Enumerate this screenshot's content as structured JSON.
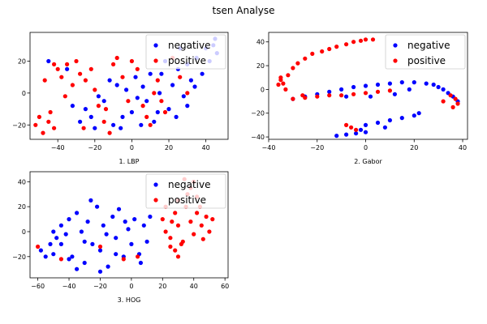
{
  "figure": {
    "suptitle": "tsen Analyse"
  },
  "colors": {
    "negative": "#0000ff",
    "positive": "#ff0000"
  },
  "chart_data": [
    {
      "type": "scatter",
      "xlabel": "1. LBP",
      "xlim": [
        -55,
        52
      ],
      "ylim": [
        -29,
        38
      ],
      "xticks": [
        -40,
        -20,
        0,
        20,
        40
      ],
      "yticks": [
        -20,
        0,
        20
      ],
      "legend": {
        "placement": "top-right",
        "entries": [
          "negative",
          "positive"
        ]
      },
      "series": [
        {
          "name": "negative",
          "color": "#0000ff",
          "points": [
            [
              -28,
              -18
            ],
            [
              -25,
              -10
            ],
            [
              -20,
              -22
            ],
            [
              -15,
              -5
            ],
            [
              -10,
              -20
            ],
            [
              -8,
              5
            ],
            [
              -5,
              -15
            ],
            [
              0,
              -12
            ],
            [
              2,
              10
            ],
            [
              5,
              -20
            ],
            [
              8,
              -5
            ],
            [
              10,
              12
            ],
            [
              12,
              -18
            ],
            [
              15,
              0
            ],
            [
              18,
              20
            ],
            [
              20,
              -10
            ],
            [
              22,
              5
            ],
            [
              25,
              15
            ],
            [
              28,
              -2
            ],
            [
              30,
              18
            ],
            [
              32,
              8
            ],
            [
              35,
              22
            ],
            [
              38,
              12
            ],
            [
              40,
              28
            ],
            [
              42,
              20
            ],
            [
              44,
              30
            ],
            [
              45,
              34
            ],
            [
              46,
              25
            ],
            [
              -18,
              -2
            ],
            [
              -12,
              8
            ],
            [
              -3,
              2
            ],
            [
              6,
              4
            ],
            [
              14,
              -12
            ],
            [
              24,
              -15
            ],
            [
              30,
              -8
            ],
            [
              34,
              4
            ],
            [
              -22,
              -15
            ],
            [
              -6,
              -22
            ],
            [
              3,
              -3
            ],
            [
              16,
              12
            ],
            [
              26,
              28
            ],
            [
              -32,
              -8
            ],
            [
              -45,
              20
            ],
            [
              -35,
              15
            ]
          ]
        },
        {
          "name": "positive",
          "color": "#ff0000",
          "points": [
            [
              -52,
              -20
            ],
            [
              -48,
              -25
            ],
            [
              -45,
              -18
            ],
            [
              -42,
              -22
            ],
            [
              -50,
              -15
            ],
            [
              -44,
              -12
            ],
            [
              -40,
              15
            ],
            [
              -38,
              10
            ],
            [
              -35,
              18
            ],
            [
              -32,
              5
            ],
            [
              -30,
              20
            ],
            [
              -28,
              12
            ],
            [
              -25,
              8
            ],
            [
              -22,
              15
            ],
            [
              -20,
              2
            ],
            [
              -18,
              -8
            ],
            [
              -15,
              -18
            ],
            [
              -12,
              -25
            ],
            [
              -10,
              18
            ],
            [
              -8,
              22
            ],
            [
              -5,
              10
            ],
            [
              -2,
              -5
            ],
            [
              0,
              20
            ],
            [
              3,
              15
            ],
            [
              6,
              -8
            ],
            [
              10,
              -20
            ],
            [
              12,
              0
            ],
            [
              14,
              8
            ],
            [
              18,
              -12
            ],
            [
              22,
              22
            ],
            [
              26,
              10
            ],
            [
              30,
              0
            ],
            [
              8,
              -15
            ],
            [
              -26,
              -22
            ],
            [
              -36,
              -2
            ],
            [
              -42,
              18
            ],
            [
              -47,
              8
            ],
            [
              -14,
              -10
            ],
            [
              16,
              -5
            ]
          ]
        }
      ]
    },
    {
      "type": "scatter",
      "xlabel": "2. Gabor",
      "xlim": [
        -40,
        42
      ],
      "ylim": [
        -42,
        48
      ],
      "xticks": [
        -40,
        -20,
        0,
        20,
        40
      ],
      "yticks": [
        -40,
        -20,
        0,
        20,
        40
      ],
      "legend": {
        "placement": "top-right",
        "entries": [
          "negative",
          "positive"
        ]
      },
      "series": [
        {
          "name": "negative",
          "color": "#0000ff",
          "points": [
            [
              -10,
              0
            ],
            [
              -5,
              2
            ],
            [
              0,
              3
            ],
            [
              5,
              4
            ],
            [
              10,
              5
            ],
            [
              15,
              6
            ],
            [
              20,
              6
            ],
            [
              25,
              5
            ],
            [
              28,
              4
            ],
            [
              30,
              2
            ],
            [
              32,
              0
            ],
            [
              34,
              -3
            ],
            [
              36,
              -6
            ],
            [
              38,
              -10
            ],
            [
              -15,
              -2
            ],
            [
              -20,
              -4
            ],
            [
              -25,
              -6
            ],
            [
              -30,
              -8
            ],
            [
              0,
              -30
            ],
            [
              5,
              -28
            ],
            [
              10,
              -26
            ],
            [
              15,
              -24
            ],
            [
              20,
              -22
            ],
            [
              22,
              -20
            ],
            [
              -8,
              -38
            ],
            [
              -4,
              -37
            ],
            [
              0,
              -36
            ],
            [
              -12,
              -39
            ],
            [
              -2,
              -34
            ],
            [
              8,
              -32
            ],
            [
              2,
              -6
            ],
            [
              12,
              -4
            ],
            [
              18,
              0
            ],
            [
              -8,
              -6
            ]
          ]
        },
        {
          "name": "positive",
          "color": "#ff0000",
          "points": [
            [
              -35,
              8
            ],
            [
              -34,
              5
            ],
            [
              -33,
              0
            ],
            [
              -32,
              12
            ],
            [
              -30,
              18
            ],
            [
              -28,
              22
            ],
            [
              -25,
              26
            ],
            [
              -22,
              30
            ],
            [
              -18,
              32
            ],
            [
              -15,
              34
            ],
            [
              -12,
              36
            ],
            [
              -8,
              38
            ],
            [
              -5,
              40
            ],
            [
              -2,
              41
            ],
            [
              0,
              42
            ],
            [
              3,
              42
            ],
            [
              -30,
              -8
            ],
            [
              -25,
              -7
            ],
            [
              -20,
              -6
            ],
            [
              -15,
              -5
            ],
            [
              -10,
              -5
            ],
            [
              -5,
              -4
            ],
            [
              0,
              -3
            ],
            [
              5,
              -2
            ],
            [
              10,
              -1
            ],
            [
              38,
              -12
            ],
            [
              37,
              -8
            ],
            [
              36,
              -15
            ],
            [
              35,
              -5
            ],
            [
              -6,
              -32
            ],
            [
              -4,
              -34
            ],
            [
              -8,
              -30
            ],
            [
              -35,
              10
            ],
            [
              -36,
              4
            ],
            [
              -26,
              -5
            ],
            [
              32,
              -10
            ]
          ]
        }
      ]
    },
    {
      "type": "scatter",
      "xlabel": "3. HOG",
      "xlim": [
        -65,
        62
      ],
      "ylim": [
        -37,
        48
      ],
      "xticks": [
        -60,
        -40,
        -20,
        0,
        20,
        40,
        60
      ],
      "yticks": [
        -20,
        0,
        20,
        40
      ],
      "legend": {
        "placement": "top-right",
        "entries": [
          "negative",
          "positive"
        ]
      },
      "series": [
        {
          "name": "negative",
          "color": "#0000ff",
          "points": [
            [
              -58,
              -15
            ],
            [
              -55,
              -20
            ],
            [
              -52,
              -10
            ],
            [
              -50,
              -18
            ],
            [
              -48,
              -5
            ],
            [
              -45,
              5
            ],
            [
              -42,
              -2
            ],
            [
              -40,
              10
            ],
            [
              -38,
              -20
            ],
            [
              -35,
              15
            ],
            [
              -32,
              0
            ],
            [
              -30,
              -25
            ],
            [
              -28,
              8
            ],
            [
              -25,
              -10
            ],
            [
              -22,
              20
            ],
            [
              -20,
              -15
            ],
            [
              -18,
              5
            ],
            [
              -15,
              -28
            ],
            [
              -12,
              12
            ],
            [
              -10,
              -5
            ],
            [
              -8,
              18
            ],
            [
              -5,
              -20
            ],
            [
              -2,
              2
            ],
            [
              0,
              -10
            ],
            [
              2,
              10
            ],
            [
              5,
              -18
            ],
            [
              8,
              5
            ],
            [
              10,
              -8
            ],
            [
              12,
              12
            ],
            [
              -35,
              -30
            ],
            [
              -45,
              -10
            ],
            [
              -26,
              25
            ],
            [
              -16,
              -2
            ],
            [
              -4,
              8
            ],
            [
              -30,
              -8
            ],
            [
              -50,
              0
            ],
            [
              -20,
              -32
            ],
            [
              6,
              -25
            ],
            [
              -10,
              -18
            ],
            [
              -40,
              -22
            ]
          ]
        },
        {
          "name": "positive",
          "color": "#ff0000",
          "points": [
            [
              20,
              10
            ],
            [
              22,
              0
            ],
            [
              25,
              -5
            ],
            [
              28,
              15
            ],
            [
              30,
              5
            ],
            [
              32,
              -10
            ],
            [
              35,
              20
            ],
            [
              38,
              8
            ],
            [
              40,
              -2
            ],
            [
              42,
              15
            ],
            [
              45,
              5
            ],
            [
              48,
              12
            ],
            [
              50,
              0
            ],
            [
              52,
              10
            ],
            [
              25,
              -12
            ],
            [
              28,
              -15
            ],
            [
              30,
              -20
            ],
            [
              33,
              -8
            ],
            [
              36,
              30
            ],
            [
              38,
              35
            ],
            [
              40,
              40
            ],
            [
              34,
              42
            ],
            [
              30,
              25
            ],
            [
              22,
              20
            ],
            [
              44,
              20
            ],
            [
              46,
              -6
            ],
            [
              -60,
              -12
            ],
            [
              -45,
              -22
            ],
            [
              -20,
              -12
            ],
            [
              -5,
              -22
            ],
            [
              4,
              -20
            ],
            [
              26,
              8
            ],
            [
              42,
              28
            ]
          ]
        }
      ]
    }
  ]
}
